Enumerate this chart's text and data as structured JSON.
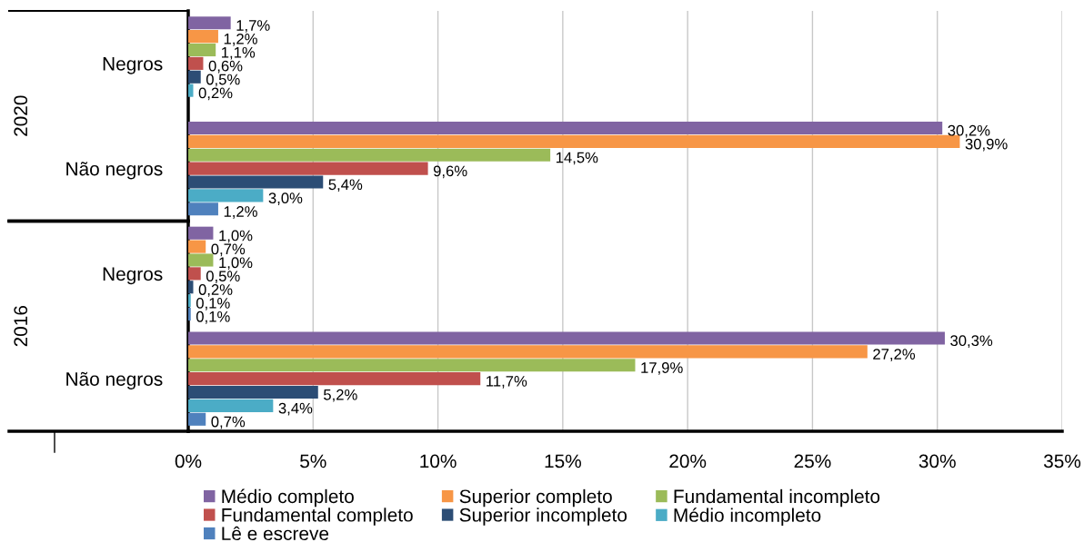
{
  "chart_data": {
    "type": "bar",
    "orientation": "horizontal",
    "categories": [
      "Negros",
      "Não negros",
      "Negros",
      "Não negros"
    ],
    "annotations": [
      "2020",
      "2016"
    ],
    "xlim": [
      0,
      35
    ],
    "xticks": [
      {
        "value": 0,
        "label": "0%"
      },
      {
        "value": 5,
        "label": "5%"
      },
      {
        "value": 10,
        "label": "10%"
      },
      {
        "value": 15,
        "label": "15%"
      },
      {
        "value": 20,
        "label": "20%"
      },
      {
        "value": 25,
        "label": "25%"
      },
      {
        "value": 30,
        "label": "30%"
      },
      {
        "value": 35,
        "label": "35%"
      }
    ],
    "grid": "x",
    "legend": "bottom",
    "series": [
      {
        "name": "Médio completo",
        "color": "#8064a2",
        "values": [
          1.7,
          30.2,
          1.0,
          30.3
        ],
        "value_labels": [
          "1,7%",
          "30,2%",
          "1,0%",
          "30,3%"
        ]
      },
      {
        "name": "Superior completo",
        "color": "#f79646",
        "values": [
          1.2,
          30.9,
          0.7,
          27.2
        ],
        "value_labels": [
          "1,2%",
          "30,9%",
          "0,7%",
          "27,2%"
        ]
      },
      {
        "name": "Fundamental incompleto",
        "color": "#9bbb59",
        "values": [
          1.1,
          14.5,
          1.0,
          17.9
        ],
        "value_labels": [
          "1,1%",
          "14,5%",
          "1,0%",
          "17,9%"
        ]
      },
      {
        "name": "Fundamental completo",
        "color": "#c0504d",
        "values": [
          0.6,
          9.6,
          0.5,
          11.7
        ],
        "value_labels": [
          "0,6%",
          "9,6%",
          "0,5%",
          "11,7%"
        ]
      },
      {
        "name": "Superior incompleto",
        "color": "#2c4d75",
        "values": [
          0.5,
          5.4,
          0.2,
          5.2
        ],
        "value_labels": [
          "0,5%",
          "5,4%",
          "0,2%",
          "5,2%"
        ]
      },
      {
        "name": "Médio incompleto",
        "color": "#4bacc6",
        "values": [
          0.2,
          3.0,
          0.1,
          3.4
        ],
        "value_labels": [
          "0,2%",
          "3,0%",
          "0,1%",
          "3,4%"
        ]
      },
      {
        "name": "Lê e escreve",
        "color": "#4f81bd",
        "values": [
          null,
          1.2,
          0.1,
          0.7
        ],
        "value_labels": [
          null,
          "1,2%",
          "0,1%",
          "0,7%"
        ]
      }
    ]
  }
}
